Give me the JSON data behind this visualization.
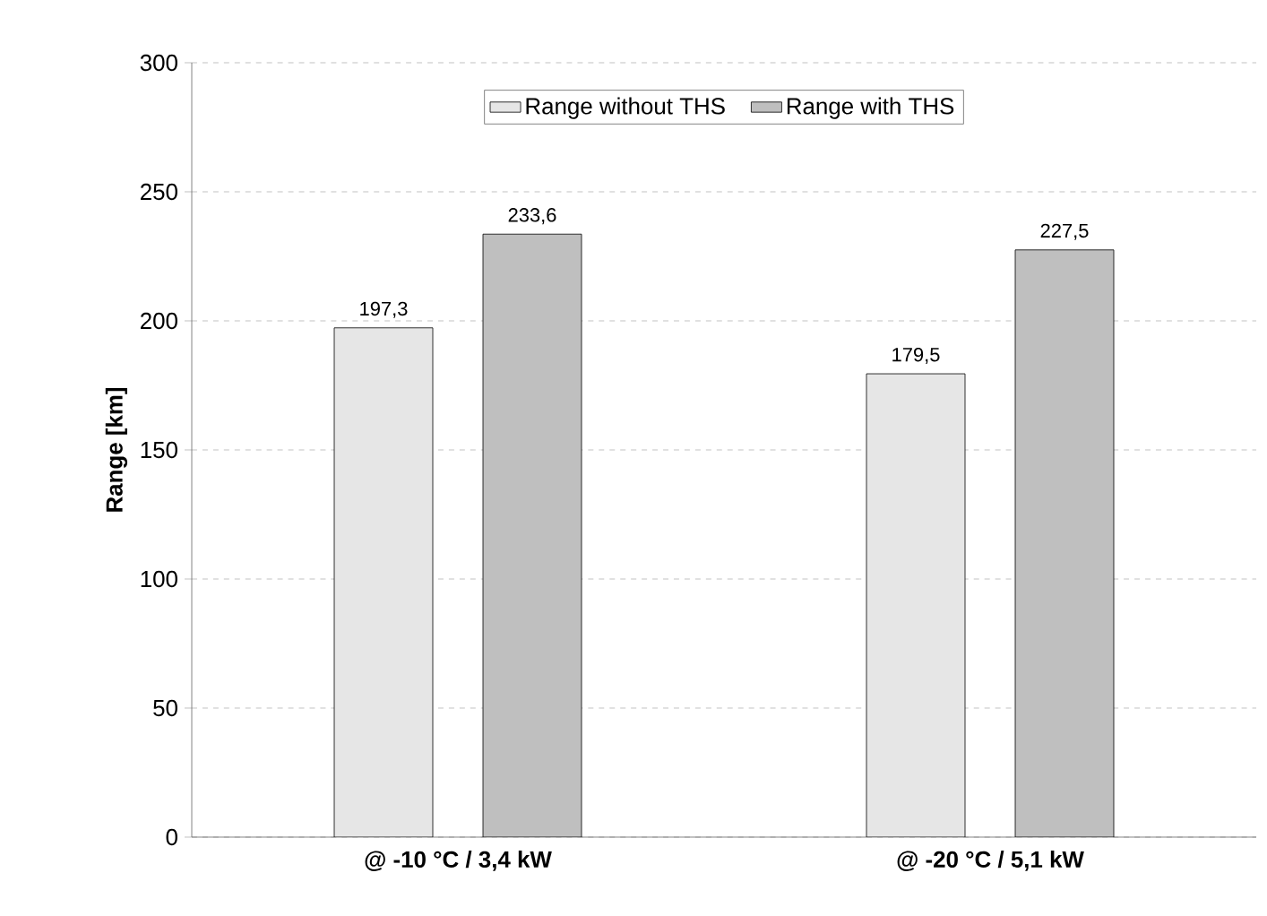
{
  "chart_data": {
    "type": "bar",
    "ylabel": "Range [km]",
    "categories": [
      "@ -10 °C / 3,4 kW",
      "@ -20 °C / 5,1 kW"
    ],
    "series": [
      {
        "name": "Range without THS",
        "color": "#e6e6e6",
        "values": [
          197.3,
          179.5
        ],
        "value_labels": [
          "197,3",
          "179,5"
        ]
      },
      {
        "name": "Range with THS",
        "color": "#bfbfbf",
        "values": [
          233.6,
          227.5
        ],
        "value_labels": [
          "233,6",
          "227,5"
        ]
      }
    ],
    "ylim": [
      0,
      300
    ],
    "yticks": [
      0,
      50,
      100,
      150,
      200,
      250,
      300
    ],
    "grid": "y",
    "legend": "top"
  }
}
